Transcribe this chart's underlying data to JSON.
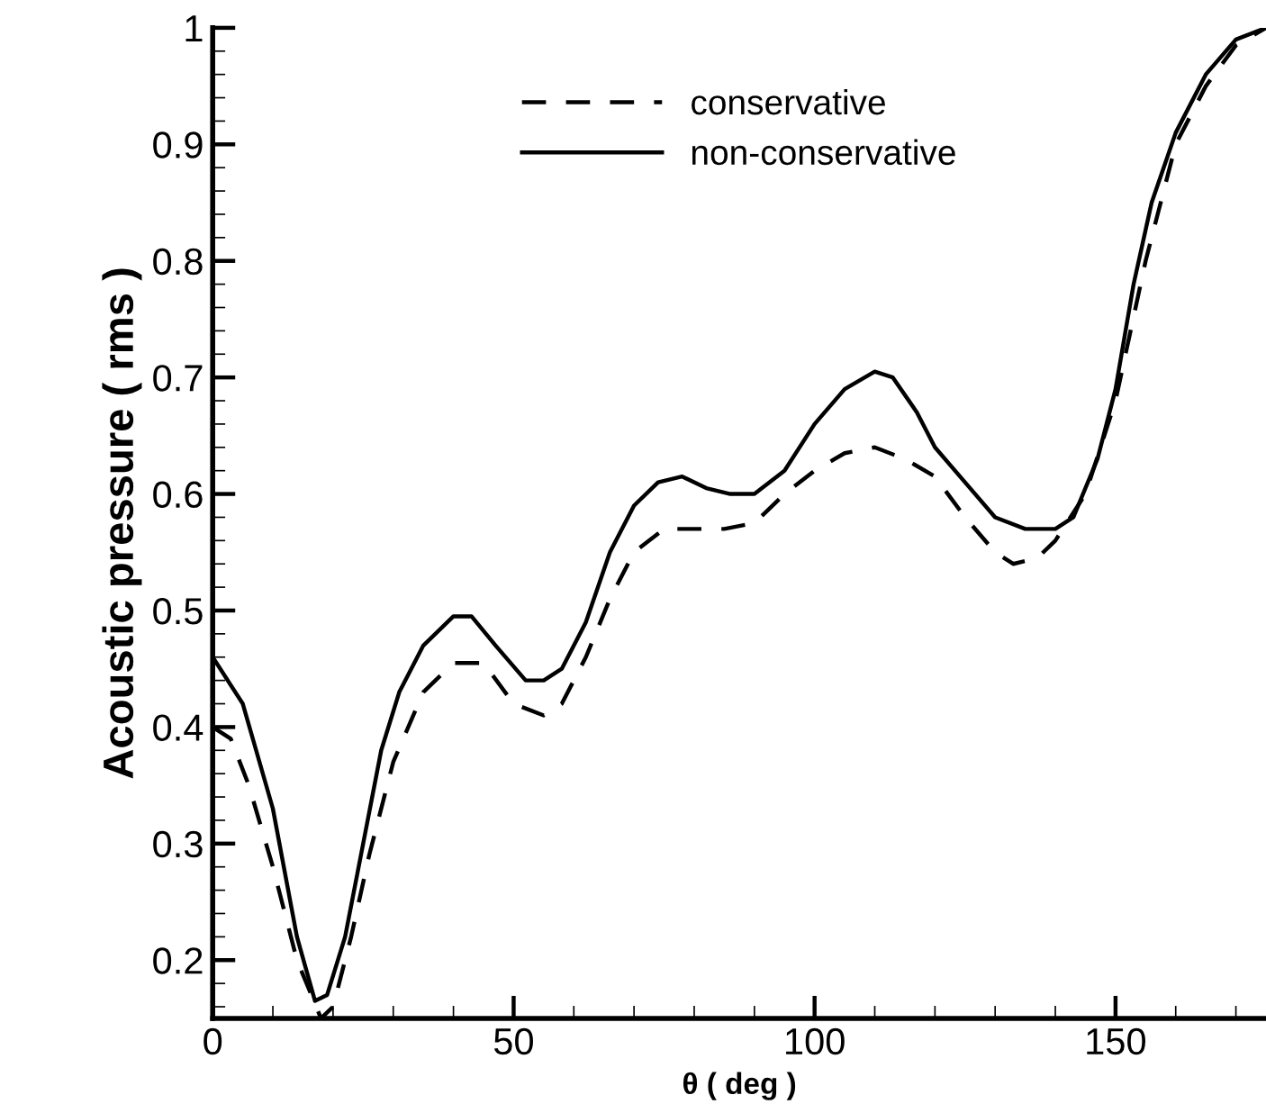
{
  "chart_data": {
    "type": "line",
    "xlabel": "θ ( deg )",
    "ylabel": "Acoustic pressure ( rms )",
    "xlim": [
      0,
      175
    ],
    "xticks": [
      0,
      50,
      100,
      150
    ],
    "ylim": [
      0.15,
      1
    ],
    "yticks": [
      0.2,
      0.3,
      0.4,
      0.5,
      0.6,
      0.7,
      0.8,
      0.9,
      1
    ],
    "grid": false,
    "legend": "top",
    "marker": "none",
    "series": [
      {
        "name": "conservative",
        "color": "#000000",
        "line_style": "dashed",
        "x": [
          0,
          3,
          6,
          10,
          14,
          18,
          20,
          23,
          26,
          30,
          35,
          40,
          45,
          50,
          55,
          58,
          62,
          66,
          70,
          75,
          80,
          85,
          90,
          95,
          100,
          105,
          110,
          115,
          120,
          125,
          130,
          133,
          137,
          140,
          145,
          150,
          155,
          160,
          165,
          170,
          175
        ],
        "values": [
          0.4,
          0.39,
          0.35,
          0.28,
          0.2,
          0.15,
          0.16,
          0.22,
          0.29,
          0.37,
          0.43,
          0.455,
          0.455,
          0.42,
          0.41,
          0.42,
          0.46,
          0.51,
          0.55,
          0.57,
          0.57,
          0.57,
          0.575,
          0.6,
          0.62,
          0.635,
          0.64,
          0.63,
          0.615,
          0.58,
          0.55,
          0.54,
          0.545,
          0.56,
          0.6,
          0.68,
          0.8,
          0.9,
          0.95,
          0.985,
          1.0
        ]
      },
      {
        "name": "non-conservative",
        "color": "#000000",
        "line_style": "solid",
        "x": [
          0,
          5,
          10,
          14,
          17,
          19,
          22,
          25,
          28,
          31,
          35,
          40,
          43,
          47,
          52,
          55,
          58,
          62,
          66,
          70,
          74,
          78,
          82,
          86,
          90,
          95,
          100,
          105,
          110,
          113,
          117,
          120,
          125,
          130,
          135,
          140,
          143,
          147,
          150,
          153,
          156,
          160,
          165,
          170,
          175
        ],
        "values": [
          0.46,
          0.42,
          0.33,
          0.22,
          0.165,
          0.17,
          0.22,
          0.3,
          0.38,
          0.43,
          0.47,
          0.495,
          0.495,
          0.47,
          0.44,
          0.44,
          0.45,
          0.49,
          0.55,
          0.59,
          0.61,
          0.615,
          0.605,
          0.6,
          0.6,
          0.62,
          0.66,
          0.69,
          0.705,
          0.7,
          0.67,
          0.64,
          0.61,
          0.58,
          0.57,
          0.57,
          0.58,
          0.63,
          0.69,
          0.78,
          0.85,
          0.91,
          0.96,
          0.99,
          1.0
        ]
      }
    ]
  }
}
